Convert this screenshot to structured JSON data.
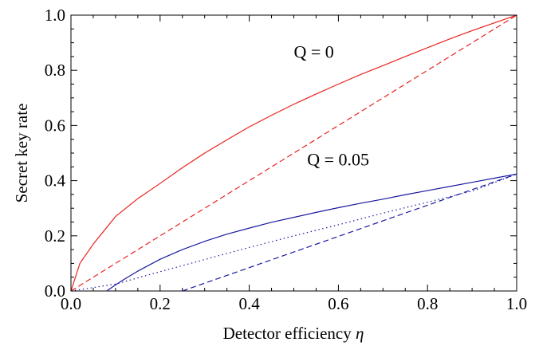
{
  "chart_data": {
    "type": "line",
    "title": "",
    "xlabel": "Detector efficiency",
    "xlabel_symbol": "η",
    "ylabel": "Secret key rate",
    "xlim": [
      0,
      1
    ],
    "ylim": [
      0,
      1
    ],
    "xticks": [
      "0.0",
      "0.2",
      "0.4",
      "0.6",
      "0.8",
      "1.0"
    ],
    "yticks": [
      "0.0",
      "0.2",
      "0.4",
      "0.6",
      "0.8",
      "1.0"
    ],
    "grid": false,
    "legend": "none",
    "annotations": [
      {
        "text": "Q = 0",
        "x": 0.5,
        "y": 0.845
      },
      {
        "text": "Q = 0.05",
        "x": 0.53,
        "y": 0.455
      }
    ],
    "series": [
      {
        "color": "#e8231f",
        "style": "solid",
        "x": [
          0,
          0.02,
          0.05,
          0.1,
          0.15,
          0.2,
          0.25,
          0.3,
          0.35,
          0.4,
          0.45,
          0.5,
          0.55,
          0.6,
          0.65,
          0.7,
          0.75,
          0.8,
          0.85,
          0.9,
          0.95,
          1.0
        ],
        "y": [
          0,
          0.1,
          0.17,
          0.27,
          0.335,
          0.39,
          0.447,
          0.5,
          0.548,
          0.595,
          0.637,
          0.677,
          0.714,
          0.75,
          0.785,
          0.817,
          0.85,
          0.882,
          0.914,
          0.944,
          0.972,
          1.0
        ]
      },
      {
        "color": "#e8231f",
        "style": "dashed",
        "x": [
          0,
          1
        ],
        "y": [
          0,
          1
        ]
      },
      {
        "color": "#1a1aa0",
        "style": "solid",
        "x": [
          0.08,
          0.1,
          0.12,
          0.15,
          0.2,
          0.25,
          0.3,
          0.35,
          0.4,
          0.45,
          0.5,
          0.55,
          0.6,
          0.65,
          0.7,
          0.75,
          0.8,
          0.85,
          0.9,
          0.95,
          1.0
        ],
        "y": [
          0,
          0.022,
          0.043,
          0.072,
          0.115,
          0.15,
          0.18,
          0.206,
          0.228,
          0.249,
          0.267,
          0.285,
          0.302,
          0.318,
          0.333,
          0.349,
          0.364,
          0.379,
          0.394,
          0.409,
          0.424
        ]
      },
      {
        "color": "#1a1aa0",
        "style": "dotted",
        "x": [
          0,
          0.1,
          0.2,
          0.3,
          0.4,
          0.5,
          0.6,
          0.7,
          0.8,
          0.9,
          1.0
        ],
        "y": [
          0,
          0.025,
          0.07,
          0.114,
          0.158,
          0.2,
          0.24,
          0.282,
          0.322,
          0.362,
          0.424
        ]
      },
      {
        "color": "#1a1aa0",
        "style": "dashed",
        "x": [
          0.25,
          1.0
        ],
        "y": [
          0,
          0.424
        ]
      }
    ]
  }
}
